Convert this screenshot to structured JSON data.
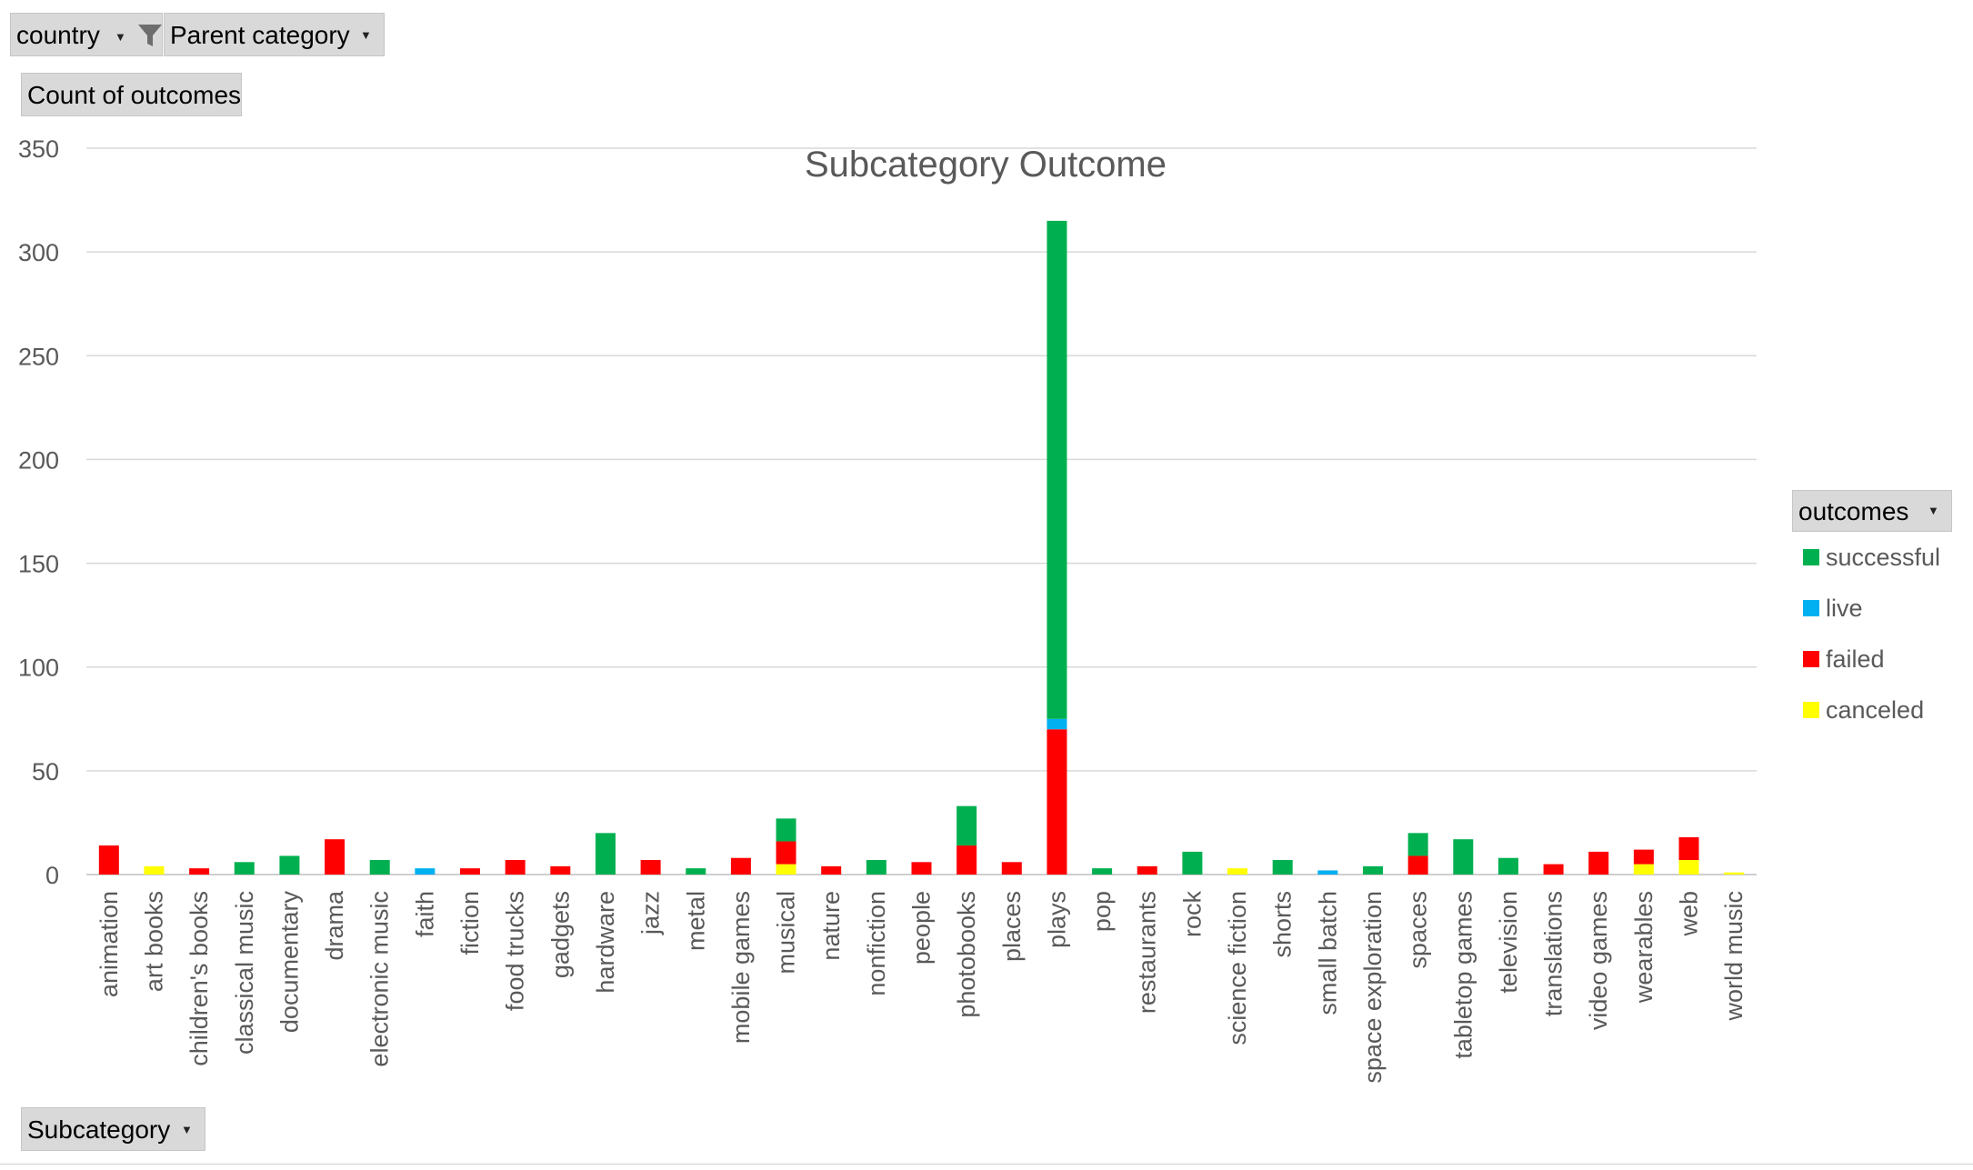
{
  "filters": {
    "country_label": "country",
    "parent_category_label": "Parent category",
    "values_label": "Count of outcomes",
    "row_field_label": "Subcategory",
    "legend_field_label": "outcomes"
  },
  "icons": {
    "filter": "funnel-filter-icon",
    "dropdown": "dropdown-arrow-icon"
  },
  "colors": {
    "successful": "#00b050",
    "live": "#00b0f0",
    "failed": "#ff0000",
    "canceled": "#ffff00",
    "gridline": "#d9d9d9",
    "axis_text": "#595959",
    "title_text": "#595959"
  },
  "chart_data": {
    "type": "bar",
    "stacked": true,
    "title": "Subcategory Outcome",
    "xlabel": "",
    "ylabel": "",
    "ylim": [
      0,
      350
    ],
    "yticks": [
      0,
      50,
      100,
      150,
      200,
      250,
      300,
      350
    ],
    "grid": true,
    "legend_position": "right",
    "categories": [
      "animation",
      "art books",
      "children's books",
      "classical music",
      "documentary",
      "drama",
      "electronic music",
      "faith",
      "fiction",
      "food trucks",
      "gadgets",
      "hardware",
      "jazz",
      "metal",
      "mobile games",
      "musical",
      "nature",
      "nonfiction",
      "people",
      "photobooks",
      "places",
      "plays",
      "pop",
      "restaurants",
      "rock",
      "science fiction",
      "shorts",
      "small batch",
      "space exploration",
      "spaces",
      "tabletop games",
      "television",
      "translations",
      "video games",
      "wearables",
      "web",
      "world music"
    ],
    "series": [
      {
        "name": "canceled",
        "color": "#ffff00",
        "values": [
          0,
          4,
          0,
          0,
          0,
          0,
          0,
          0,
          0,
          0,
          0,
          0,
          0,
          0,
          0,
          5,
          0,
          0,
          0,
          0,
          0,
          0,
          0,
          0,
          0,
          3,
          0,
          0,
          0,
          0,
          0,
          0,
          0,
          0,
          5,
          7,
          1
        ]
      },
      {
        "name": "failed",
        "color": "#ff0000",
        "values": [
          14,
          0,
          3,
          0,
          0,
          17,
          0,
          0,
          3,
          7,
          4,
          0,
          7,
          0,
          8,
          11,
          4,
          0,
          6,
          14,
          6,
          70,
          0,
          4,
          0,
          0,
          0,
          0,
          0,
          9,
          0,
          0,
          5,
          11,
          7,
          11,
          0
        ]
      },
      {
        "name": "live",
        "color": "#00b0f0",
        "values": [
          0,
          0,
          0,
          0,
          0,
          0,
          0,
          3,
          0,
          0,
          0,
          0,
          0,
          0,
          0,
          0,
          0,
          0,
          0,
          0,
          0,
          5,
          0,
          0,
          0,
          0,
          0,
          2,
          0,
          0,
          0,
          0,
          0,
          0,
          0,
          0,
          0
        ]
      },
      {
        "name": "successful",
        "color": "#00b050",
        "values": [
          0,
          0,
          0,
          6,
          9,
          0,
          7,
          0,
          0,
          0,
          0,
          20,
          0,
          3,
          0,
          11,
          0,
          7,
          0,
          19,
          0,
          240,
          3,
          0,
          11,
          0,
          7,
          0,
          4,
          11,
          17,
          8,
          0,
          0,
          0,
          0,
          0
        ]
      }
    ],
    "legend_order": [
      "successful",
      "live",
      "failed",
      "canceled"
    ]
  }
}
